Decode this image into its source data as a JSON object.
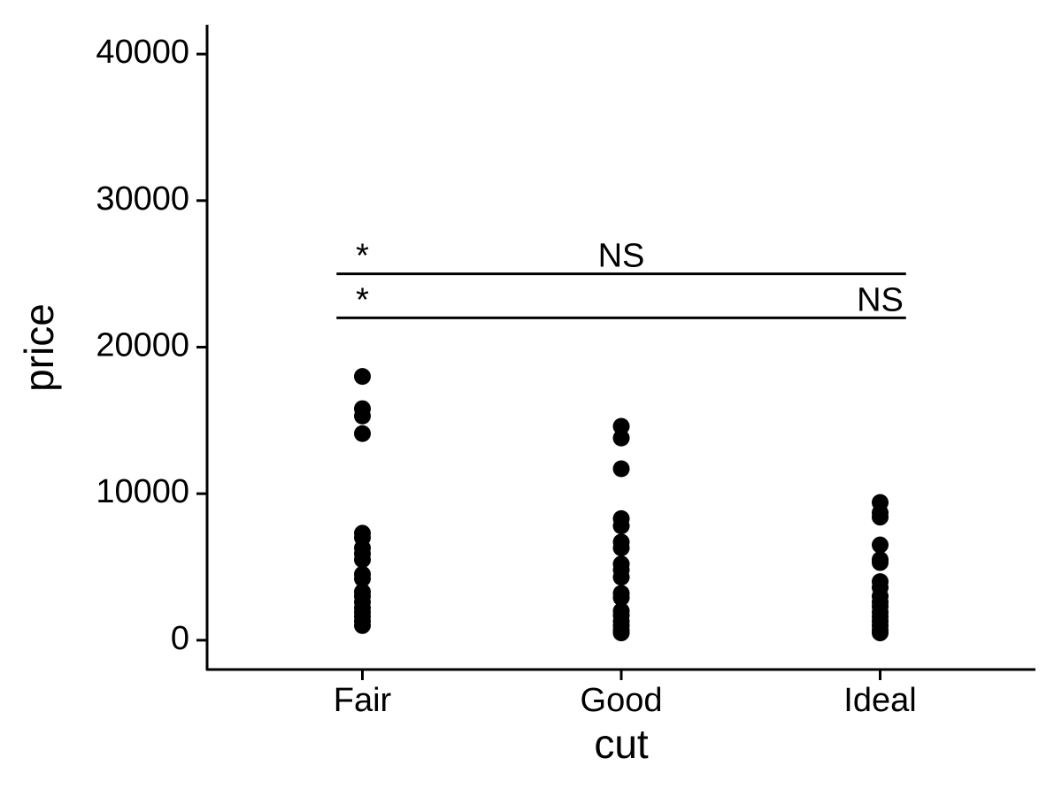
{
  "chart_data": {
    "type": "strip",
    "x_label": "cut",
    "y_label": "price",
    "categories": [
      "Fair",
      "Good",
      "Ideal"
    ],
    "values": [
      [
        18000,
        15800,
        15300,
        14100,
        7300,
        7000,
        6300,
        5900,
        5500,
        4500,
        4200,
        3300,
        3000,
        2600,
        2200,
        1900,
        1600,
        1300,
        1000
      ],
      [
        14600,
        13800,
        11700,
        8300,
        7800,
        6700,
        6300,
        5200,
        4800,
        4300,
        3200,
        2900,
        2000,
        1700,
        1300,
        1000,
        700,
        500
      ],
      [
        9400,
        8700,
        8400,
        6500,
        5500,
        5300,
        4000,
        3600,
        3000,
        2600,
        2300,
        1900,
        1600,
        1300,
        1000,
        700,
        500
      ]
    ],
    "color": "#000000",
    "ylim": [
      -2000,
      42000
    ],
    "yticks": [
      0,
      10000,
      20000,
      30000,
      40000
    ],
    "brackets": [
      {
        "y": 25000,
        "labels": [
          "*",
          "NS",
          null
        ]
      },
      {
        "y": 22000,
        "labels": [
          "*",
          null,
          "NS"
        ]
      }
    ]
  }
}
